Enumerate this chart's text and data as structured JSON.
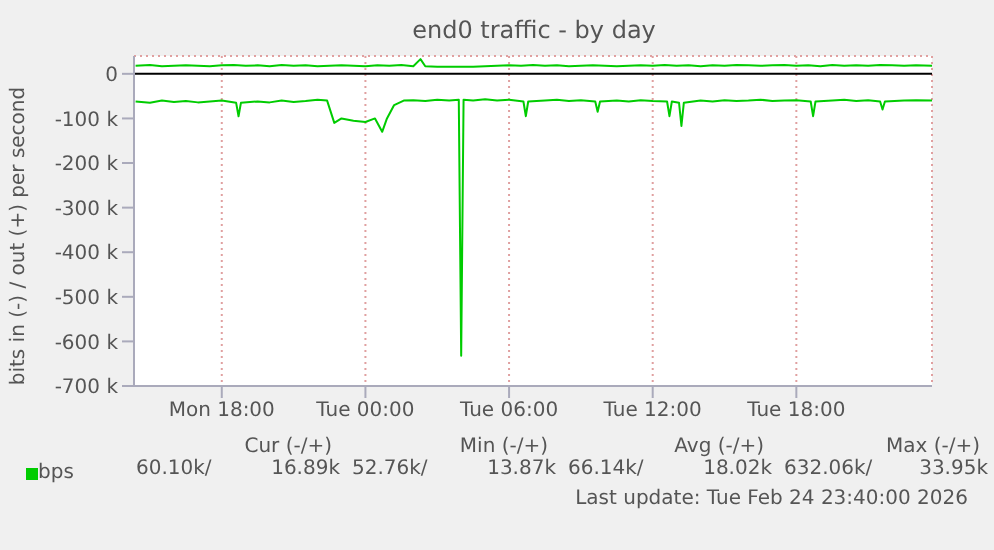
{
  "chart_data": {
    "type": "line",
    "title": "end0 traffic - by day",
    "ylabel": "bits in (-) / out (+) per second",
    "xlim": [
      "2026-02-23T14:20",
      "2026-02-24T23:40"
    ],
    "xticks": [
      {
        "value": "2026-02-23T18:00",
        "label": "Mon 18:00"
      },
      {
        "value": "2026-02-24T00:00",
        "label": "Tue 00:00"
      },
      {
        "value": "2026-02-24T06:00",
        "label": "Tue 06:00"
      },
      {
        "value": "2026-02-24T12:00",
        "label": "Tue 12:00"
      },
      {
        "value": "2026-02-24T18:00",
        "label": "Tue 18:00"
      }
    ],
    "ylim": [
      -700000,
      40000
    ],
    "yticks": [
      {
        "value": 0,
        "label": "0"
      },
      {
        "value": -100000,
        "label": "-100 k"
      },
      {
        "value": -200000,
        "label": "-200 k"
      },
      {
        "value": -300000,
        "label": "-300 k"
      },
      {
        "value": -400000,
        "label": "-400 k"
      },
      {
        "value": -500000,
        "label": "-500 k"
      },
      {
        "value": -600000,
        "label": "-600 k"
      },
      {
        "value": -700000,
        "label": "-700 k"
      }
    ],
    "grid": true,
    "legend": "bottom",
    "marker": "none",
    "line_style": "solid",
    "ref_lines": [
      {
        "axis": "y",
        "value": 0,
        "color": "#000000"
      }
    ],
    "series": [
      {
        "name": "bps",
        "color": "#00cc00",
        "x": [
          "2026-02-23T14:24",
          "2026-02-23T15:00",
          "2026-02-23T15:30",
          "2026-02-23T16:00",
          "2026-02-23T16:30",
          "2026-02-23T17:00",
          "2026-02-23T17:30",
          "2026-02-23T18:00",
          "2026-02-23T18:30",
          "2026-02-23T19:00",
          "2026-02-23T19:30",
          "2026-02-23T20:00",
          "2026-02-23T20:30",
          "2026-02-23T21:00",
          "2026-02-23T21:30",
          "2026-02-23T22:00",
          "2026-02-23T22:30",
          "2026-02-23T23:00",
          "2026-02-23T23:30",
          "2026-02-24T00:00",
          "2026-02-24T00:30",
          "2026-02-24T01:00",
          "2026-02-24T01:30",
          "2026-02-24T02:00",
          "2026-02-24T02:18",
          "2026-02-24T02:30",
          "2026-02-24T03:00",
          "2026-02-24T03:30",
          "2026-02-24T04:00",
          "2026-02-24T04:30",
          "2026-02-24T05:00",
          "2026-02-24T05:30",
          "2026-02-24T06:00",
          "2026-02-24T06:30",
          "2026-02-24T07:00",
          "2026-02-24T07:30",
          "2026-02-24T08:00",
          "2026-02-24T08:30",
          "2026-02-24T09:00",
          "2026-02-24T09:30",
          "2026-02-24T10:00",
          "2026-02-24T10:30",
          "2026-02-24T11:00",
          "2026-02-24T11:30",
          "2026-02-24T12:00",
          "2026-02-24T12:30",
          "2026-02-24T13:00",
          "2026-02-24T13:30",
          "2026-02-24T14:00",
          "2026-02-24T14:30",
          "2026-02-24T15:00",
          "2026-02-24T15:30",
          "2026-02-24T16:00",
          "2026-02-24T16:30",
          "2026-02-24T17:00",
          "2026-02-24T17:30",
          "2026-02-24T18:00",
          "2026-02-24T18:30",
          "2026-02-24T19:00",
          "2026-02-24T19:30",
          "2026-02-24T20:00",
          "2026-02-24T20:30",
          "2026-02-24T21:00",
          "2026-02-24T21:30",
          "2026-02-24T22:00",
          "2026-02-24T22:30",
          "2026-02-24T23:00",
          "2026-02-24T23:40"
        ],
        "values": [
          18000,
          20000,
          17000,
          18000,
          19000,
          18000,
          17000,
          19000,
          20000,
          18000,
          19000,
          17000,
          20000,
          18000,
          19000,
          17000,
          18000,
          19000,
          18000,
          17000,
          19000,
          18000,
          20000,
          17000,
          33000,
          17000,
          16000,
          16000,
          16000,
          16000,
          17000,
          18000,
          19000,
          18000,
          20000,
          18000,
          19000,
          17000,
          18000,
          19000,
          18000,
          17000,
          18000,
          19000,
          18000,
          20000,
          18000,
          19000,
          17000,
          19000,
          18000,
          20000,
          19000,
          18000,
          19000,
          20000,
          18000,
          19000,
          17000,
          20000,
          18000,
          19000,
          18000,
          20000,
          19000,
          18000,
          19000,
          18000
        ]
      },
      {
        "color": "#00cc00",
        "x": [
          "2026-02-23T14:24",
          "2026-02-23T15:00",
          "2026-02-23T15:30",
          "2026-02-23T16:00",
          "2026-02-23T16:30",
          "2026-02-23T17:00",
          "2026-02-23T17:30",
          "2026-02-23T18:00",
          "2026-02-23T18:36",
          "2026-02-23T18:42",
          "2026-02-23T18:48",
          "2026-02-23T19:30",
          "2026-02-23T20:00",
          "2026-02-23T20:30",
          "2026-02-23T21:00",
          "2026-02-23T21:30",
          "2026-02-23T22:00",
          "2026-02-23T22:24",
          "2026-02-23T22:42",
          "2026-02-23T23:00",
          "2026-02-23T23:30",
          "2026-02-24T00:00",
          "2026-02-24T00:24",
          "2026-02-24T00:42",
          "2026-02-24T00:54",
          "2026-02-24T01:12",
          "2026-02-24T01:36",
          "2026-02-24T02:00",
          "2026-02-24T02:30",
          "2026-02-24T03:00",
          "2026-02-24T03:30",
          "2026-02-24T03:54",
          "2026-02-24T04:00",
          "2026-02-24T04:06",
          "2026-02-24T04:30",
          "2026-02-24T05:00",
          "2026-02-24T05:30",
          "2026-02-24T06:00",
          "2026-02-24T06:36",
          "2026-02-24T06:42",
          "2026-02-24T06:48",
          "2026-02-24T07:30",
          "2026-02-24T08:00",
          "2026-02-24T08:30",
          "2026-02-24T09:00",
          "2026-02-24T09:36",
          "2026-02-24T09:42",
          "2026-02-24T09:48",
          "2026-02-24T10:30",
          "2026-02-24T11:00",
          "2026-02-24T11:30",
          "2026-02-24T12:00",
          "2026-02-24T12:36",
          "2026-02-24T12:42",
          "2026-02-24T12:48",
          "2026-02-24T13:06",
          "2026-02-24T13:12",
          "2026-02-24T13:18",
          "2026-02-24T14:00",
          "2026-02-24T14:30",
          "2026-02-24T15:00",
          "2026-02-24T15:30",
          "2026-02-24T16:00",
          "2026-02-24T16:30",
          "2026-02-24T17:00",
          "2026-02-24T17:30",
          "2026-02-24T18:00",
          "2026-02-24T18:36",
          "2026-02-24T18:42",
          "2026-02-24T18:48",
          "2026-02-24T19:30",
          "2026-02-24T20:00",
          "2026-02-24T20:30",
          "2026-02-24T21:00",
          "2026-02-24T21:30",
          "2026-02-24T21:36",
          "2026-02-24T21:42",
          "2026-02-24T22:30",
          "2026-02-24T23:00",
          "2026-02-24T23:40"
        ],
        "values": [
          -62000,
          -65000,
          -60000,
          -63000,
          -61000,
          -64000,
          -62000,
          -60000,
          -65000,
          -95000,
          -65000,
          -62000,
          -64000,
          -60000,
          -63000,
          -61000,
          -58000,
          -60000,
          -110000,
          -100000,
          -105000,
          -108000,
          -100000,
          -130000,
          -100000,
          -70000,
          -60000,
          -59000,
          -61000,
          -58000,
          -60000,
          -58000,
          -632000,
          -58000,
          -60000,
          -57000,
          -60000,
          -58000,
          -62000,
          -95000,
          -62000,
          -60000,
          -58000,
          -61000,
          -59000,
          -62000,
          -85000,
          -62000,
          -60000,
          -62000,
          -59000,
          -61000,
          -62000,
          -95000,
          -62000,
          -65000,
          -117000,
          -65000,
          -60000,
          -62000,
          -59000,
          -61000,
          -60000,
          -58000,
          -61000,
          -60000,
          -59000,
          -62000,
          -95000,
          -62000,
          -60000,
          -58000,
          -61000,
          -59000,
          -62000,
          -80000,
          -62000,
          -60000,
          -59000,
          -60000
        ]
      }
    ],
    "annotations": [
      "Cur (-/+)",
      "Min (-/+)",
      "Avg (-/+)",
      "Max (-/+)",
      "60.10k/",
      "16.89k",
      "52.76k/",
      "13.87k",
      "66.14k/",
      "18.02k",
      "632.06k/",
      "33.95k",
      "Last update: Tue Feb 24 23:40:00 2026"
    ]
  }
}
